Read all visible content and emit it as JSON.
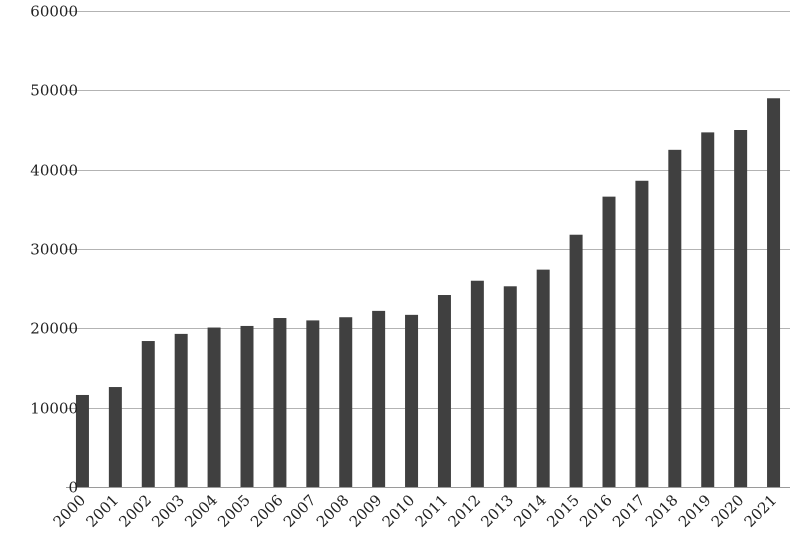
{
  "chart_data": {
    "type": "bar",
    "title": "",
    "xlabel": "",
    "ylabel": "",
    "categories": [
      "2000",
      "2001",
      "2002",
      "2003",
      "2004",
      "2005",
      "2006",
      "2007",
      "2008",
      "2009",
      "2010",
      "2011",
      "2012",
      "2013",
      "2014",
      "2015",
      "2016",
      "2017",
      "2018",
      "2019",
      "2020",
      "2021"
    ],
    "values": [
      11600,
      12600,
      18400,
      19300,
      20100,
      20300,
      21300,
      21000,
      21400,
      22200,
      21700,
      24200,
      26000,
      25300,
      27400,
      31800,
      36600,
      38600,
      42500,
      44700,
      45000,
      49000
    ],
    "ylim": [
      0,
      60000
    ],
    "yticks": [
      0,
      10000,
      20000,
      30000,
      40000,
      50000,
      60000
    ],
    "grid": true,
    "legend": "none",
    "bar_color": "#404040",
    "grid_color": "#b3b3b3"
  }
}
